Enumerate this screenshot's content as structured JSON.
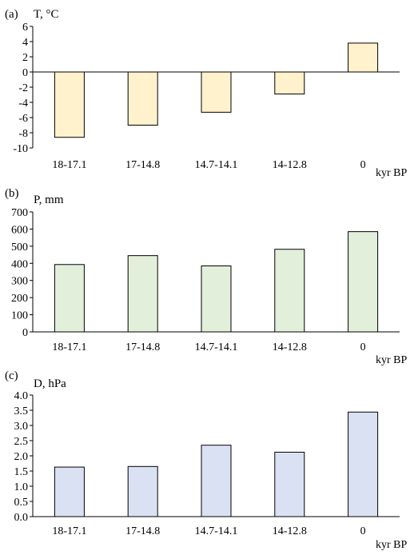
{
  "chart_data": [
    {
      "type": "bar",
      "panel_label": "(a)",
      "ylabel": "T, °C",
      "xlabel": "kyr BP",
      "categories": [
        "18-17.1",
        "17-14.8",
        "14.7-14.1",
        "14-12.8",
        "0"
      ],
      "values": [
        -8.6,
        -7.0,
        -5.3,
        -2.9,
        3.8
      ],
      "ylim": [
        -10,
        6
      ],
      "yticks": [
        6,
        4,
        2,
        0,
        -2,
        -4,
        -6,
        -8,
        -10
      ],
      "ytick_labels": [
        "6",
        "4",
        "2",
        "0",
        "-2",
        "-4",
        "-6",
        "-8",
        "-10"
      ],
      "bar_color": "#fff2cc",
      "grid": false
    },
    {
      "type": "bar",
      "panel_label": "(b)",
      "ylabel": "P, mm",
      "xlabel": "kyr BP",
      "categories": [
        "18-17.1",
        "17-14.8",
        "14.7-14.1",
        "14-12.8",
        "0"
      ],
      "values": [
        393,
        445,
        385,
        482,
        585
      ],
      "ylim": [
        0,
        700
      ],
      "yticks": [
        700,
        600,
        500,
        400,
        300,
        200,
        100,
        0
      ],
      "ytick_labels": [
        "700",
        "600",
        "500",
        "400",
        "300",
        "200",
        "100",
        "0"
      ],
      "bar_color": "#e2efda",
      "grid": false
    },
    {
      "type": "bar",
      "panel_label": "(c)",
      "ylabel": "D, hPa",
      "xlabel": "kyr BP",
      "categories": [
        "18-17.1",
        "17-14.8",
        "14.7-14.1",
        "14-12.8",
        "0"
      ],
      "values": [
        1.63,
        1.65,
        2.35,
        2.12,
        3.44
      ],
      "ylim": [
        0,
        4
      ],
      "yticks": [
        4,
        3.5,
        3,
        2.5,
        2,
        1.5,
        1,
        0.5,
        0
      ],
      "ytick_labels": [
        "4.0",
        "3.5",
        "3.0",
        "2.5",
        "2.0",
        "1.5",
        "1.0",
        "0.5",
        "0.0"
      ],
      "bar_color": "#d9e1f2",
      "grid": false
    }
  ]
}
